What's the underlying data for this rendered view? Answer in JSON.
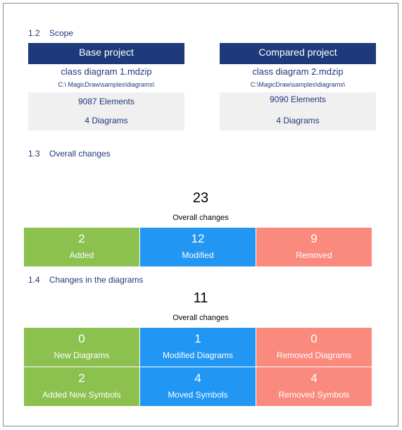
{
  "scope": {
    "number": "1.2",
    "heading": "Scope",
    "projects": [
      {
        "title": "Base project",
        "file": "class diagram  1.mdzip",
        "path": "C:\\ MagicDraw\\samples\\diagrams\\",
        "elements": "9087 Elements",
        "diagrams": "4 Diagrams"
      },
      {
        "title": "Compared project",
        "file": "class diagram  2.mdzip",
        "path": "C:\\MagicDraw\\samples\\diagrams\\",
        "elements": "9090 Elements",
        "diagrams": "4 Diagrams"
      }
    ]
  },
  "overall": {
    "number": "1.3",
    "heading": "Overall changes",
    "total": 23,
    "total_label": "Overall changes",
    "tiles": [
      {
        "value": 2,
        "label": "Added"
      },
      {
        "value": 12,
        "label": "Modified"
      },
      {
        "value": 9,
        "label": "Removed"
      }
    ]
  },
  "diagrams": {
    "number": "1.4",
    "heading": "Changes in the diagrams",
    "total": 11,
    "total_label": "Overall changes",
    "tiles": [
      {
        "value": 0,
        "label": "New Diagrams"
      },
      {
        "value": 1,
        "label": "Modified Diagrams"
      },
      {
        "value": 0,
        "label": "Removed Diagrams"
      },
      {
        "value": 2,
        "label": "Added New Symbols"
      },
      {
        "value": 4,
        "label": "Moved Symbols"
      },
      {
        "value": 4,
        "label": "Removed Symbols"
      }
    ]
  }
}
